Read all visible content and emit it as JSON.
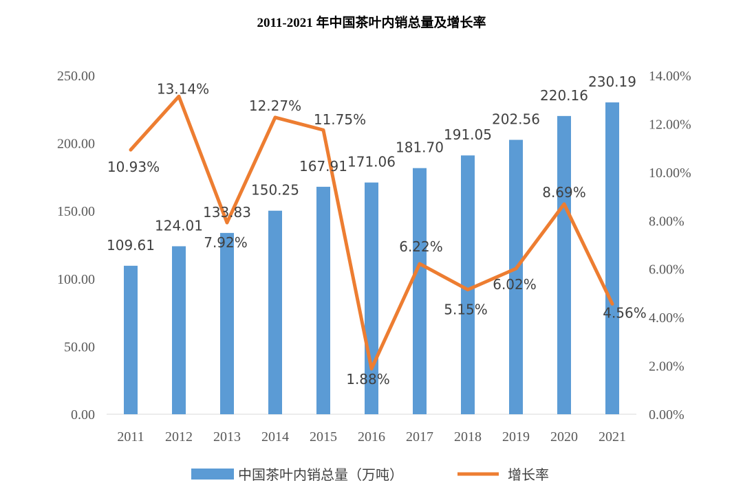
{
  "chart_data": {
    "type": "bar",
    "title": "2011-2021 年中国茶叶内销总量及增长率",
    "categories": [
      "2011",
      "2012",
      "2013",
      "2014",
      "2015",
      "2016",
      "2017",
      "2018",
      "2019",
      "2020",
      "2021"
    ],
    "series": [
      {
        "name": "中国茶叶内销总量（万吨）",
        "type": "bar",
        "axis": "left",
        "color": "#5b9bd5",
        "values": [
          109.61,
          124.01,
          133.83,
          150.25,
          167.91,
          171.06,
          181.7,
          191.05,
          202.56,
          220.16,
          230.19
        ],
        "labels": [
          "109.61",
          "124.01",
          "133.83",
          "150.25",
          "167.91",
          "171.06",
          "181.70",
          "191.05",
          "202.56",
          "220.16",
          "230.19"
        ]
      },
      {
        "name": "增长率",
        "type": "line",
        "axis": "right",
        "color": "#ed7d31",
        "values": [
          10.93,
          13.14,
          7.92,
          12.27,
          11.75,
          1.88,
          6.22,
          5.15,
          6.02,
          8.69,
          4.56
        ],
        "labels": [
          "10.93%",
          "13.14%",
          "7.92%",
          "12.27%",
          "11.75%",
          "1.88%",
          "6.22%",
          "5.15%",
          "6.02%",
          "8.69%",
          "4.56%"
        ]
      }
    ],
    "y_left": {
      "ylim": [
        0,
        250
      ],
      "ticks": [
        "0.00",
        "50.00",
        "100.00",
        "150.00",
        "200.00",
        "250.00"
      ]
    },
    "y_right": {
      "ylim": [
        0,
        14
      ],
      "ticks": [
        "0.00%",
        "2.00%",
        "4.00%",
        "6.00%",
        "8.00%",
        "10.00%",
        "12.00%",
        "14.00%"
      ]
    },
    "grid": false,
    "legend": "bottom"
  }
}
